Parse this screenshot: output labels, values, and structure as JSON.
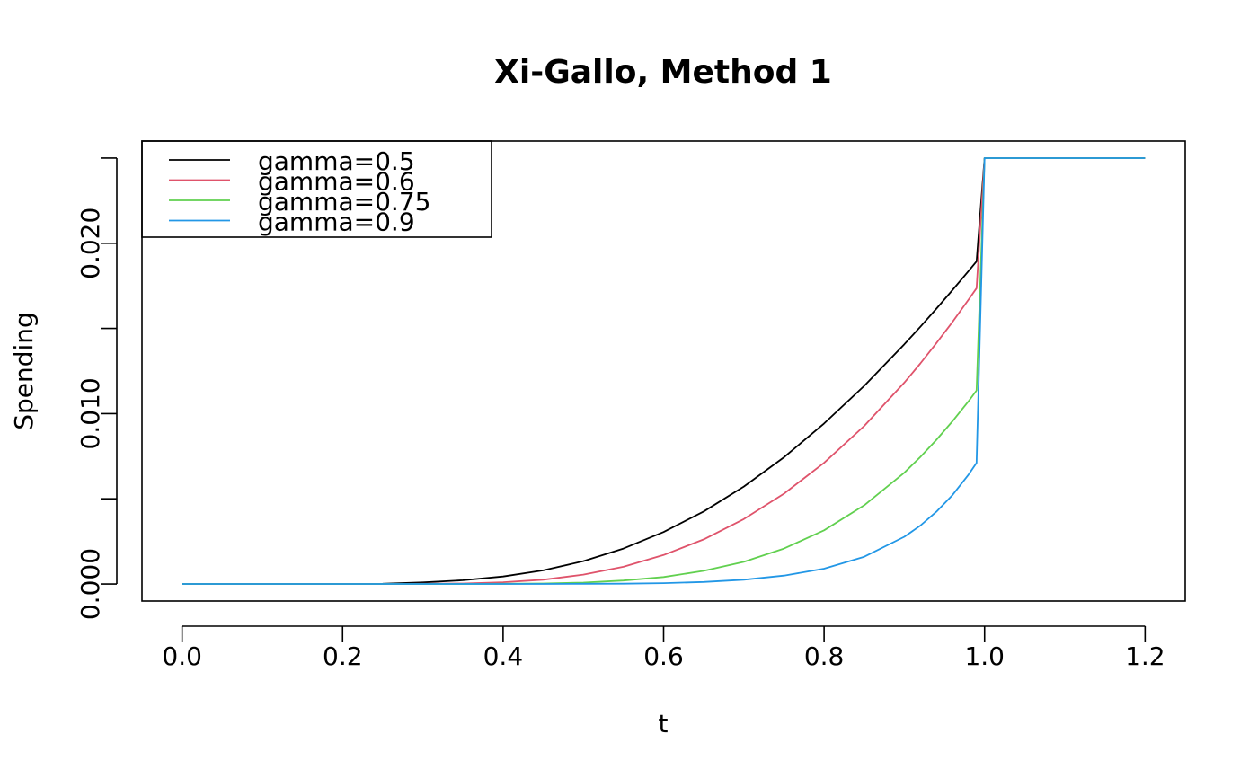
{
  "chart_data": {
    "type": "line",
    "title": "Xi-Gallo, Method 1",
    "xlabel": "t",
    "ylabel": "Spending",
    "xlim": [
      -0.05,
      1.25
    ],
    "ylim": [
      -0.001,
      0.026
    ],
    "x_ticks": [
      0.0,
      0.2,
      0.4,
      0.6,
      0.8,
      1.0,
      1.2
    ],
    "x_tick_labels": [
      "0.0",
      "0.2",
      "0.4",
      "0.6",
      "0.8",
      "1.0",
      "1.2"
    ],
    "y_ticks": [
      0.0,
      0.005,
      0.01,
      0.015,
      0.02,
      0.025
    ],
    "y_tick_labels": [
      "0.000",
      "",
      "0.010",
      "",
      "0.020",
      ""
    ],
    "legend_position": "top-left",
    "alpha": 0.025,
    "x_points": [
      0.0,
      0.05,
      0.1,
      0.15,
      0.2,
      0.25,
      0.3,
      0.35,
      0.4,
      0.45,
      0.5,
      0.55,
      0.6,
      0.65,
      0.7,
      0.75,
      0.8,
      0.85,
      0.9,
      0.92,
      0.94,
      0.96,
      0.98,
      0.99,
      1.0,
      1.05,
      1.1,
      1.15,
      1.2
    ],
    "series": [
      {
        "name": "gamma=0.5",
        "color": "#000000",
        "values": [
          0.0,
          0.0,
          0.0,
          0.0,
          0.0,
          1e-05,
          9e-05,
          0.00022,
          0.00044,
          0.0008,
          0.00134,
          0.00208,
          0.00305,
          0.00426,
          0.00572,
          0.00744,
          0.00942,
          0.01163,
          0.01407,
          0.0151,
          0.01616,
          0.01725,
          0.01837,
          0.01894,
          0.025,
          0.025,
          0.025,
          0.025,
          0.025
        ]
      },
      {
        "name": "gamma=0.6",
        "color": "#DF536B",
        "values": [
          0.0,
          0.0,
          0.0,
          0.0,
          0.0,
          0.0,
          1e-05,
          3e-05,
          0.0001,
          0.00025,
          0.00055,
          0.00101,
          0.0017,
          0.00262,
          0.00381,
          0.0053,
          0.00711,
          0.00928,
          0.01182,
          0.01295,
          0.01414,
          0.01538,
          0.01669,
          0.01736,
          0.025,
          0.025,
          0.025,
          0.025,
          0.025
        ]
      },
      {
        "name": "gamma=0.75",
        "color": "#61D04F",
        "values": [
          0.0,
          0.0,
          0.0,
          0.0,
          0.0,
          0.0,
          0.0,
          0.0,
          1e-05,
          3e-05,
          8e-05,
          0.0002,
          0.00041,
          0.00077,
          0.0013,
          0.00208,
          0.00315,
          0.00462,
          0.00653,
          0.00746,
          0.00846,
          0.00955,
          0.01073,
          0.01136,
          0.025,
          0.025,
          0.025,
          0.025,
          0.025
        ]
      },
      {
        "name": "gamma=0.9",
        "color": "#2297E6",
        "values": [
          0.0,
          0.0,
          0.0,
          0.0,
          0.0,
          0.0,
          0.0,
          0.0,
          0.0,
          0.0,
          1e-05,
          2e-05,
          5e-05,
          0.00012,
          0.00025,
          0.00049,
          0.0009,
          0.0016,
          0.00277,
          0.00343,
          0.00424,
          0.00522,
          0.00642,
          0.00711,
          0.025,
          0.025,
          0.025,
          0.025,
          0.025
        ]
      }
    ]
  }
}
